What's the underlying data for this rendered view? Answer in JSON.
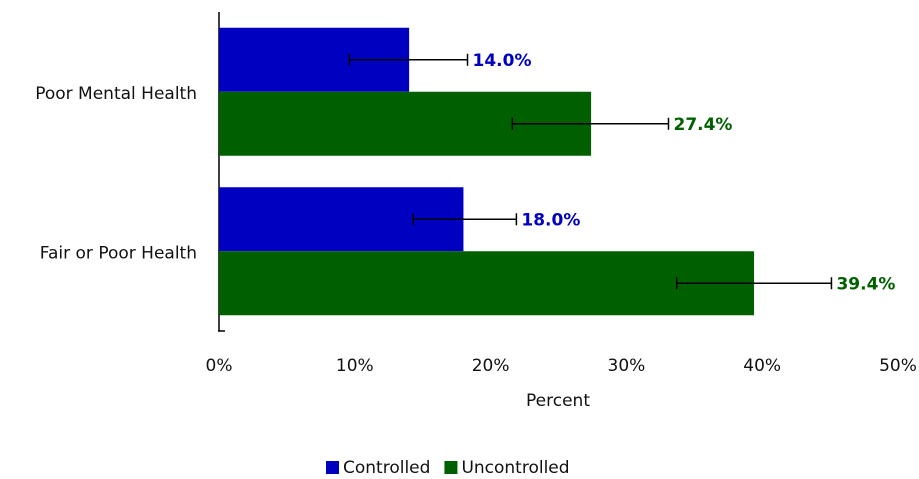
{
  "chart_data": {
    "type": "hbar",
    "categories": [
      "Poor Mental Health",
      "Fair or Poor Health"
    ],
    "series": [
      {
        "name": "Controlled",
        "color": "#0000c0",
        "values": [
          14.0,
          18.0
        ],
        "value_labels": [
          "14.0%",
          "18.0%"
        ],
        "ci_low": [
          9.6,
          14.3
        ],
        "ci_high": [
          18.3,
          21.9
        ]
      },
      {
        "name": "Uncontrolled",
        "color": "#006000",
        "values": [
          27.4,
          39.4
        ],
        "value_labels": [
          "27.4%",
          "39.4%"
        ],
        "ci_low": [
          21.6,
          33.7
        ],
        "ci_high": [
          33.1,
          45.1
        ]
      }
    ],
    "xlim": [
      0,
      50
    ],
    "xticks": [
      {
        "value": 0,
        "label": "0%"
      },
      {
        "value": 10,
        "label": "10%"
      },
      {
        "value": 20,
        "label": "20%"
      },
      {
        "value": 30,
        "label": "30%"
      },
      {
        "value": 40,
        "label": "40%"
      },
      {
        "value": 50,
        "label": "50%"
      }
    ],
    "xlabel": "Percent"
  }
}
